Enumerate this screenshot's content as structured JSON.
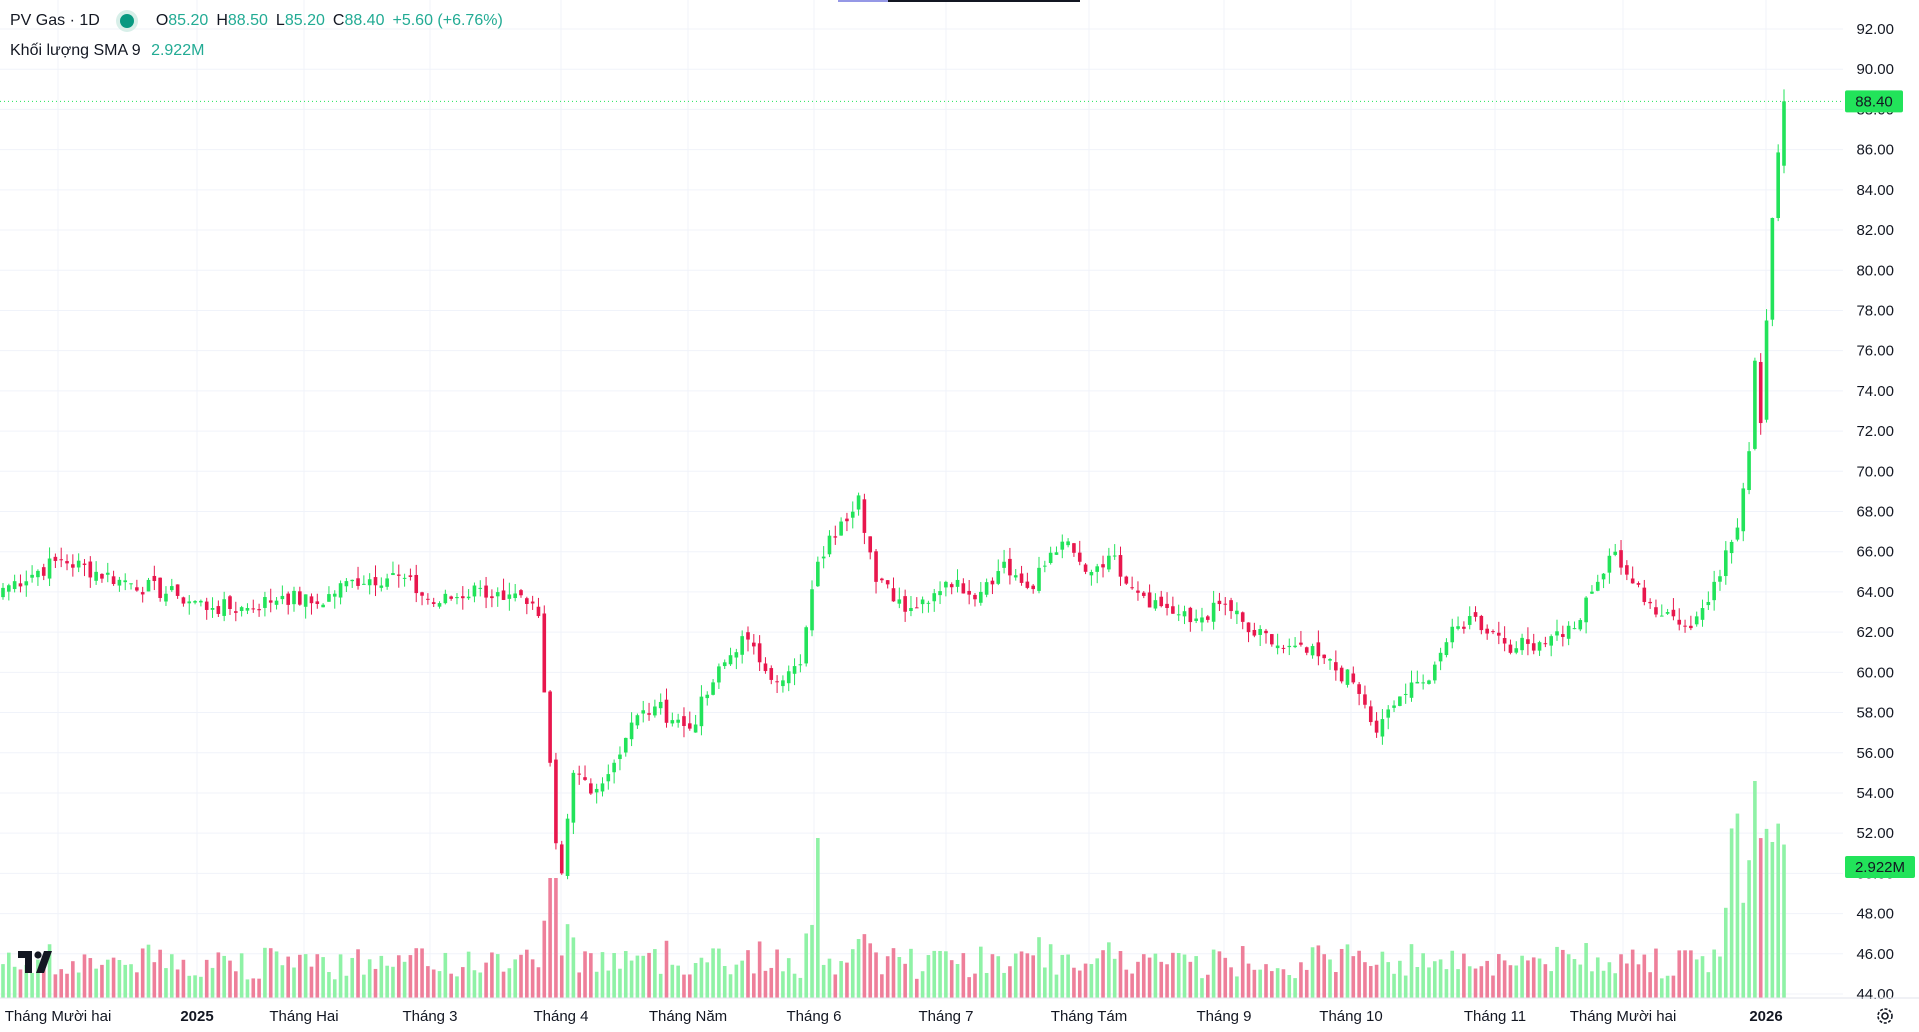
{
  "legend": {
    "symbol": "PV Gas",
    "interval": "1D",
    "open_key": "O",
    "open": "85.20",
    "high_key": "H",
    "high": "88.50",
    "low_key": "L",
    "low": "85.20",
    "close_key": "C",
    "close": "88.40",
    "change": "+5.60 (+6.76%)",
    "volume_label": "Khối lượng SMA 9",
    "volume_value": "2.922M"
  },
  "price_badge": "88.40",
  "volume_badge": "2.922M",
  "colors": {
    "up": "#22e35a",
    "down": "#e8174d",
    "up_vol": "#8ff2a6",
    "down_vol": "#ee7f9a",
    "grid": "#f0f3fa"
  },
  "icons": {
    "logo": "tradingview-logo-icon",
    "settings": "settings-gear-icon"
  },
  "chart_data": {
    "type": "candlestick",
    "y_axis": {
      "min": 44,
      "max": 92,
      "ticks": [
        "92.00",
        "90.00",
        "88.00",
        "86.00",
        "84.00",
        "82.00",
        "80.00",
        "78.00",
        "76.00",
        "74.00",
        "72.00",
        "70.00",
        "68.00",
        "66.00",
        "64.00",
        "62.00",
        "60.00",
        "58.00",
        "56.00",
        "54.00",
        "52.00",
        "50.00",
        "48.00",
        "46.00",
        "44.00"
      ]
    },
    "x_axis": {
      "labels": [
        "Tháng Mười hai",
        "2025",
        "Tháng Hai",
        "Tháng 3",
        "Tháng 4",
        "Tháng Năm",
        "Tháng 6",
        "Tháng 7",
        "Tháng Tám",
        "Tháng 9",
        "Tháng 10",
        "Tháng 11",
        "Tháng Mười hai",
        "2026"
      ],
      "bold": [
        "2025",
        "2026"
      ]
    },
    "last_close": 88.4,
    "anchors": [
      [
        0,
        64.2
      ],
      [
        10,
        65.6
      ],
      [
        20,
        64.6
      ],
      [
        30,
        63.8
      ],
      [
        36,
        63.2
      ],
      [
        42,
        63.2
      ],
      [
        48,
        63.8
      ],
      [
        54,
        63.4
      ],
      [
        60,
        64.6
      ],
      [
        68,
        64.8
      ],
      [
        74,
        63.4
      ],
      [
        82,
        64.2
      ],
      [
        86,
        63.6
      ],
      [
        90,
        63.4
      ],
      [
        92,
        62.8
      ],
      [
        93,
        59.0
      ],
      [
        94,
        55.5
      ],
      [
        95,
        51.5
      ],
      [
        96,
        50.0
      ],
      [
        98,
        55.0
      ],
      [
        102,
        54.2
      ],
      [
        105,
        55.5
      ],
      [
        108,
        57.5
      ],
      [
        112,
        58.3
      ],
      [
        118,
        57.2
      ],
      [
        122,
        59.5
      ],
      [
        127,
        61.8
      ],
      [
        130,
        60.5
      ],
      [
        134,
        59.6
      ],
      [
        137,
        60.4
      ],
      [
        140,
        65.5
      ],
      [
        144,
        67.5
      ],
      [
        147,
        68.8
      ],
      [
        150,
        64.5
      ],
      [
        156,
        63.2
      ],
      [
        162,
        64.5
      ],
      [
        168,
        64.0
      ],
      [
        172,
        65.5
      ],
      [
        176,
        64.2
      ],
      [
        182,
        66.5
      ],
      [
        186,
        65.0
      ],
      [
        190,
        65.8
      ],
      [
        196,
        63.8
      ],
      [
        200,
        63.2
      ],
      [
        204,
        62.5
      ],
      [
        210,
        63.4
      ],
      [
        214,
        62.0
      ],
      [
        220,
        61.2
      ],
      [
        226,
        60.8
      ],
      [
        232,
        59.5
      ],
      [
        236,
        57.0
      ],
      [
        240,
        58.8
      ],
      [
        244,
        59.5
      ],
      [
        248,
        61.5
      ],
      [
        252,
        62.8
      ],
      [
        256,
        62.0
      ],
      [
        260,
        61.2
      ],
      [
        266,
        61.8
      ],
      [
        270,
        62.2
      ],
      [
        274,
        64.5
      ],
      [
        277,
        66.0
      ],
      [
        282,
        63.5
      ],
      [
        286,
        63.0
      ],
      [
        290,
        62.2
      ],
      [
        294,
        64.5
      ],
      [
        298,
        67.2
      ],
      [
        300,
        71.0
      ],
      [
        301,
        75.5
      ],
      [
        302,
        72.4
      ],
      [
        303,
        77.5
      ],
      [
        304,
        82.6
      ],
      [
        306,
        88.4
      ]
    ],
    "volume_axis_top_label": "2.922M",
    "candle_count": 307
  }
}
